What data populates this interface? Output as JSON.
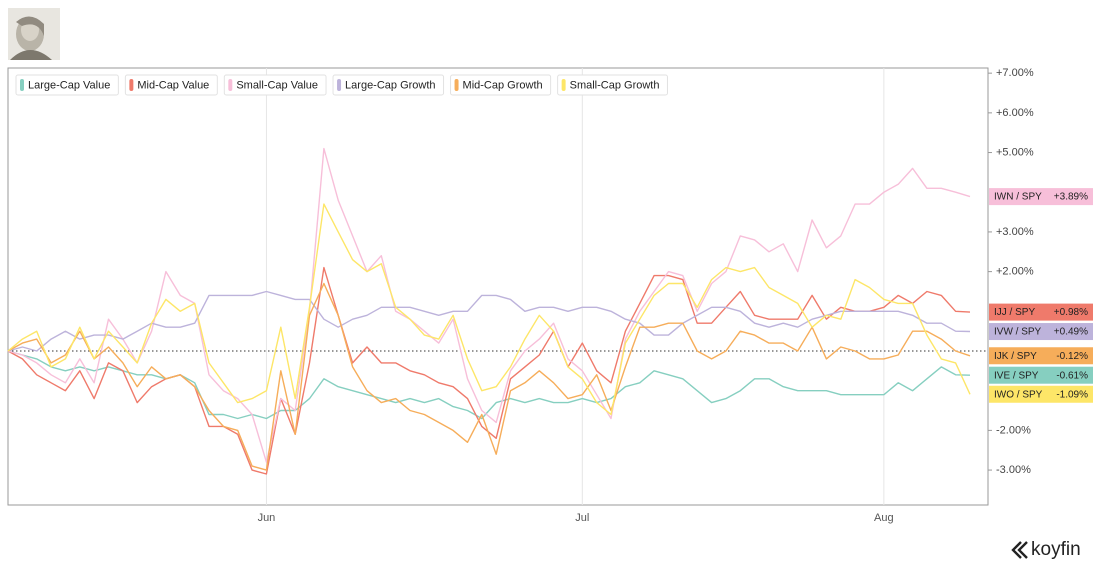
{
  "brand": "koyfin",
  "chart_data": {
    "type": "line",
    "categories": [
      null,
      null,
      null,
      null,
      null,
      null,
      null,
      null,
      null,
      null,
      null,
      null,
      null,
      null,
      null,
      null,
      null,
      null,
      "Jun",
      null,
      null,
      null,
      null,
      null,
      null,
      null,
      null,
      null,
      null,
      null,
      null,
      null,
      null,
      null,
      null,
      null,
      null,
      null,
      null,
      null,
      "Jul",
      null,
      null,
      null,
      null,
      null,
      null,
      null,
      null,
      null,
      null,
      null,
      null,
      null,
      null,
      null,
      null,
      null,
      null,
      null,
      null,
      "Aug",
      null,
      null,
      null,
      null,
      null,
      null
    ],
    "ylim": [
      -3.88,
      7.13
    ],
    "yticks": [
      {
        "value": 7,
        "label": "+7.00%"
      },
      {
        "value": 6,
        "label": "+6.00%"
      },
      {
        "value": 5,
        "label": "+5.00%"
      },
      {
        "value": 3,
        "label": "+3.00%"
      },
      {
        "value": 2,
        "label": "+2.00%"
      },
      {
        "value": -2,
        "label": "-2.00%"
      },
      {
        "value": -3,
        "label": "-3.00%"
      }
    ],
    "legend": "top-left",
    "series": [
      {
        "name": "Large-Cap Value",
        "color": "#86cfc0",
        "ticker": "IVE / SPY",
        "end_label": "-0.61%",
        "values": [
          0,
          -0.1,
          -0.2,
          -0.4,
          -0.5,
          -0.4,
          -0.5,
          -0.4,
          -0.5,
          -0.6,
          -0.6,
          -0.7,
          -0.6,
          -0.8,
          -1.6,
          -1.6,
          -1.7,
          -1.6,
          -1.7,
          -1.5,
          -1.5,
          -1.2,
          -0.7,
          -0.9,
          -1.0,
          -1.1,
          -1.2,
          -1.3,
          -1.2,
          -1.3,
          -1.2,
          -1.4,
          -1.5,
          -1.7,
          -1.3,
          -1.2,
          -1.3,
          -1.2,
          -1.3,
          -1.3,
          -1.2,
          -1.3,
          -1.2,
          -0.9,
          -0.8,
          -0.5,
          -0.6,
          -0.7,
          -1.0,
          -1.3,
          -1.2,
          -1.0,
          -0.7,
          -0.7,
          -0.9,
          -1.0,
          -1.0,
          -1.0,
          -1.1,
          -1.1,
          -1.1,
          -1.1,
          -0.8,
          -1.0,
          -0.7,
          -0.4,
          -0.6,
          -0.61
        ]
      },
      {
        "name": "Mid-Cap Value",
        "color": "#ef7a6b",
        "ticker": "IJJ / SPY",
        "end_label": "+0.98%",
        "values": [
          0,
          -0.2,
          -0.6,
          -0.8,
          -1.0,
          -0.5,
          -1.2,
          -0.3,
          -0.5,
          -1.3,
          -0.9,
          -0.7,
          -0.6,
          -0.9,
          -1.9,
          -1.9,
          -2.1,
          -3.0,
          -3.1,
          -1.2,
          -2.1,
          -0.3,
          2.1,
          0.9,
          -0.3,
          0.1,
          -0.3,
          -0.3,
          -0.5,
          -0.6,
          -0.8,
          -0.9,
          -1.2,
          -1.9,
          -2.2,
          -0.7,
          -0.4,
          -0.1,
          0.5,
          -0.4,
          0.2,
          -0.5,
          -0.8,
          0.5,
          1.2,
          1.9,
          1.9,
          1.8,
          0.7,
          0.7,
          1.1,
          1.5,
          0.9,
          0.8,
          0.8,
          0.8,
          1.4,
          0.8,
          1.1,
          1.0,
          1.0,
          1.1,
          1.4,
          1.2,
          1.5,
          1.4,
          1.0,
          0.98
        ]
      },
      {
        "name": "Small-Cap Value",
        "color": "#f7bfd9",
        "ticker": "IWN / SPY",
        "end_label": "+3.89%",
        "values": [
          0,
          -0.1,
          -0.3,
          -0.6,
          -0.8,
          -0.2,
          -0.8,
          0.8,
          0.3,
          -0.3,
          0.5,
          2.0,
          1.4,
          1.2,
          -0.6,
          -1.0,
          -1.2,
          -1.6,
          -2.8,
          -1.2,
          -1.5,
          1.0,
          5.1,
          3.8,
          2.9,
          2.0,
          2.4,
          1.0,
          0.8,
          0.5,
          0.2,
          0.8,
          -0.7,
          -1.5,
          -1.8,
          -0.5,
          0.0,
          0.3,
          0.7,
          -0.2,
          -0.5,
          -1.1,
          -1.7,
          0.3,
          1.0,
          1.5,
          2.0,
          1.9,
          1.0,
          1.7,
          2.0,
          2.9,
          2.8,
          2.5,
          2.7,
          2.0,
          3.3,
          2.6,
          2.9,
          3.7,
          3.7,
          4.0,
          4.2,
          4.6,
          4.1,
          4.1,
          4.0,
          3.89
        ]
      },
      {
        "name": "Large-Cap Growth",
        "color": "#bdb3db",
        "ticker": "IVW / SPY",
        "end_label": "+0.49%",
        "values": [
          0,
          0.1,
          0.0,
          0.3,
          0.5,
          0.3,
          0.4,
          0.4,
          0.3,
          0.5,
          0.7,
          0.6,
          0.6,
          0.7,
          1.4,
          1.4,
          1.4,
          1.4,
          1.5,
          1.4,
          1.3,
          1.3,
          0.8,
          0.6,
          0.8,
          0.9,
          1.1,
          1.1,
          1.1,
          1.0,
          0.9,
          1.0,
          1.0,
          1.4,
          1.4,
          1.3,
          1.0,
          1.1,
          1.1,
          1.0,
          1.1,
          1.1,
          1.0,
          0.8,
          0.7,
          0.4,
          0.4,
          0.7,
          0.9,
          1.1,
          1.1,
          1.0,
          0.7,
          0.6,
          0.7,
          0.6,
          0.8,
          0.9,
          1.0,
          1.0,
          1.0,
          1.0,
          1.0,
          0.9,
          0.7,
          0.7,
          0.5,
          0.49
        ]
      },
      {
        "name": "Mid-Cap Growth",
        "color": "#f6ad5a",
        "ticker": "IJK / SPY",
        "end_label": "-0.12%",
        "values": [
          0,
          0.2,
          0.3,
          -0.3,
          -0.1,
          0.5,
          -0.2,
          0.1,
          -0.3,
          -0.9,
          -0.4,
          -0.7,
          -0.6,
          -0.9,
          -1.5,
          -1.9,
          -2.0,
          -2.9,
          -3.0,
          -0.5,
          -2.1,
          0.9,
          1.7,
          0.9,
          -0.4,
          -1.0,
          -1.3,
          -1.2,
          -1.5,
          -1.6,
          -1.8,
          -2.0,
          -2.3,
          -1.6,
          -2.6,
          -1.0,
          -0.8,
          -0.5,
          -0.8,
          -1.2,
          -1.1,
          -0.6,
          -1.5,
          -0.4,
          0.6,
          0.6,
          0.7,
          0.7,
          0.0,
          -0.2,
          0.0,
          0.5,
          0.4,
          0.2,
          0.2,
          0.0,
          0.6,
          -0.2,
          0.1,
          0.0,
          -0.2,
          -0.2,
          -0.1,
          0.5,
          0.5,
          0.3,
          0.0,
          -0.12
        ]
      },
      {
        "name": "Small-Cap Growth",
        "color": "#fde668",
        "ticker": "IWO / SPY",
        "end_label": "-1.09%",
        "values": [
          0,
          0.3,
          0.5,
          -0.4,
          -0.2,
          0.6,
          -0.2,
          0.5,
          0.1,
          -0.3,
          0.7,
          1.3,
          1.0,
          1.2,
          -0.3,
          -0.8,
          -1.3,
          -1.2,
          -1.0,
          0.6,
          -1.2,
          1.1,
          3.7,
          3.0,
          2.3,
          2.0,
          2.2,
          1.1,
          0.8,
          0.4,
          0.3,
          0.9,
          -0.2,
          -1.0,
          -0.9,
          -0.4,
          0.3,
          0.9,
          0.5,
          -0.4,
          -0.7,
          -1.3,
          -1.6,
          0.2,
          0.8,
          1.4,
          1.7,
          1.7,
          1.1,
          1.8,
          2.1,
          2.0,
          2.1,
          1.6,
          1.4,
          1.2,
          0.6,
          0.9,
          0.8,
          1.8,
          1.6,
          1.3,
          1.2,
          1.2,
          0.4,
          -0.2,
          -0.3,
          -1.09
        ]
      }
    ]
  }
}
